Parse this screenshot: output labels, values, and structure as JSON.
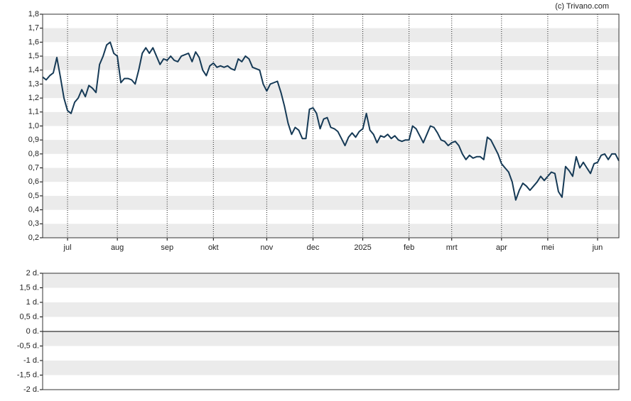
{
  "watermark": "(c) Trivano.com",
  "chart_data": [
    {
      "type": "line",
      "color": "#163a56",
      "grid": "bands",
      "xlim": [
        0,
        162
      ],
      "xticks": [
        {
          "value": 7,
          "label": "jul"
        },
        {
          "value": 21,
          "label": "aug"
        },
        {
          "value": 35,
          "label": "sep"
        },
        {
          "value": 48,
          "label": "okt"
        },
        {
          "value": 63,
          "label": "nov"
        },
        {
          "value": 76,
          "label": "dec"
        },
        {
          "value": 90,
          "label": "2025"
        },
        {
          "value": 103,
          "label": "feb"
        },
        {
          "value": 115,
          "label": "mrt"
        },
        {
          "value": 129,
          "label": "apr"
        },
        {
          "value": 142,
          "label": "mei"
        },
        {
          "value": 156,
          "label": "jun"
        }
      ],
      "ylim": [
        0.2,
        1.8
      ],
      "yticks": [
        {
          "value": 0.2,
          "label": "0,2"
        },
        {
          "value": 0.3,
          "label": "0,3"
        },
        {
          "value": 0.4,
          "label": "0,4"
        },
        {
          "value": 0.5,
          "label": "0,5"
        },
        {
          "value": 0.6,
          "label": "0,6"
        },
        {
          "value": 0.7,
          "label": "0,7"
        },
        {
          "value": 0.8,
          "label": "0,8"
        },
        {
          "value": 0.9,
          "label": "0,9"
        },
        {
          "value": 1.0,
          "label": "1,0"
        },
        {
          "value": 1.1,
          "label": "1,1"
        },
        {
          "value": 1.2,
          "label": "1,2"
        },
        {
          "value": 1.3,
          "label": "1,3"
        },
        {
          "value": 1.4,
          "label": "1,4"
        },
        {
          "value": 1.5,
          "label": "1,5"
        },
        {
          "value": 1.6,
          "label": "1,6"
        },
        {
          "value": 1.7,
          "label": "1,7"
        },
        {
          "value": 1.8,
          "label": "1,8"
        }
      ],
      "values": [
        1.35,
        1.33,
        1.36,
        1.38,
        1.49,
        1.35,
        1.2,
        1.11,
        1.09,
        1.17,
        1.2,
        1.26,
        1.21,
        1.29,
        1.27,
        1.24,
        1.44,
        1.5,
        1.58,
        1.6,
        1.52,
        1.5,
        1.31,
        1.34,
        1.34,
        1.33,
        1.3,
        1.4,
        1.52,
        1.56,
        1.52,
        1.56,
        1.5,
        1.44,
        1.48,
        1.47,
        1.5,
        1.47,
        1.46,
        1.5,
        1.51,
        1.52,
        1.46,
        1.53,
        1.49,
        1.4,
        1.36,
        1.43,
        1.45,
        1.42,
        1.43,
        1.42,
        1.43,
        1.41,
        1.4,
        1.48,
        1.46,
        1.5,
        1.48,
        1.42,
        1.41,
        1.4,
        1.3,
        1.25,
        1.3,
        1.31,
        1.32,
        1.24,
        1.14,
        1.02,
        0.94,
        0.99,
        0.97,
        0.91,
        0.91,
        1.12,
        1.13,
        1.09,
        0.98,
        1.05,
        1.06,
        0.99,
        0.98,
        0.96,
        0.91,
        0.86,
        0.92,
        0.95,
        0.92,
        0.96,
        0.98,
        1.09,
        0.97,
        0.94,
        0.88,
        0.93,
        0.92,
        0.94,
        0.91,
        0.93,
        0.9,
        0.89,
        0.9,
        0.9,
        1.0,
        0.98,
        0.93,
        0.88,
        0.94,
        1.0,
        0.99,
        0.95,
        0.9,
        0.89,
        0.86,
        0.88,
        0.89,
        0.86,
        0.8,
        0.76,
        0.79,
        0.77,
        0.78,
        0.78,
        0.76,
        0.92,
        0.9,
        0.85,
        0.8,
        0.73,
        0.7,
        0.67,
        0.6,
        0.47,
        0.54,
        0.59,
        0.57,
        0.54,
        0.57,
        0.6,
        0.64,
        0.61,
        0.64,
        0.67,
        0.66,
        0.53,
        0.49,
        0.71,
        0.68,
        0.64,
        0.78,
        0.7,
        0.74,
        0.7,
        0.66,
        0.73,
        0.74,
        0.79,
        0.8,
        0.76,
        0.8,
        0.8,
        0.75
      ]
    },
    {
      "type": "empty",
      "grid": "bands",
      "zero_line": true,
      "ylim": [
        -2,
        2
      ],
      "yticks": [
        {
          "value": 2,
          "label": "2 d."
        },
        {
          "value": 1.5,
          "label": "1,5 d."
        },
        {
          "value": 1,
          "label": "1 d."
        },
        {
          "value": 0.5,
          "label": "0,5 d."
        },
        {
          "value": 0,
          "label": "0 d."
        },
        {
          "value": -0.5,
          "label": "-0,5 d."
        },
        {
          "value": -1,
          "label": "-1 d."
        },
        {
          "value": -1.5,
          "label": "-1,5 d."
        },
        {
          "value": -2,
          "label": "-2 d."
        }
      ]
    }
  ]
}
